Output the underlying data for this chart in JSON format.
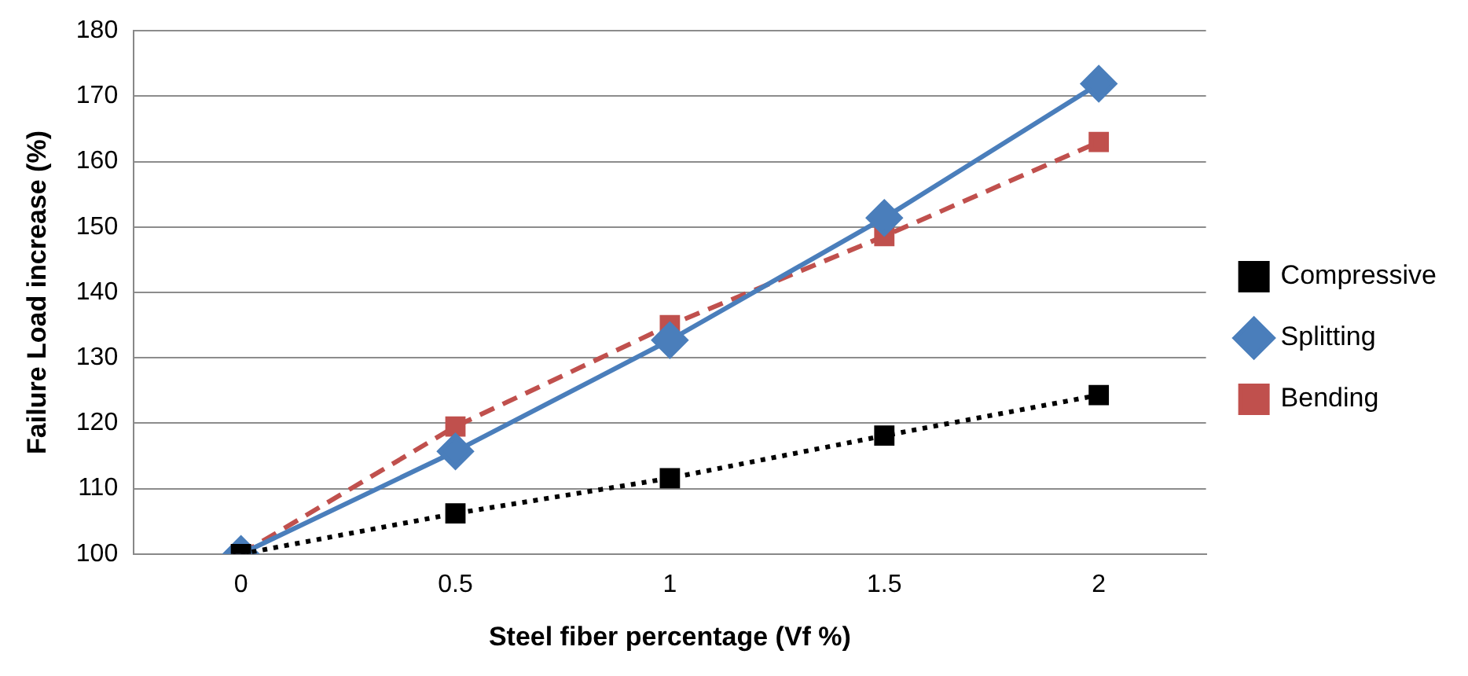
{
  "chart_data": {
    "type": "line",
    "xlabel": "Steel fiber percentage (Vf %)",
    "ylabel": "Failure Load increase (%)",
    "categories": [
      "0",
      "0.5",
      "1",
      "1.5",
      "2"
    ],
    "series": [
      {
        "name": "Compressive",
        "color": "#000000",
        "marker": "square",
        "line_style": "dotted",
        "values": [
          100,
          106.2,
          111.6,
          118.1,
          124.3
        ]
      },
      {
        "name": "Splitting",
        "color": "#4a7ebb",
        "marker": "diamond",
        "line_style": "solid",
        "values": [
          100,
          115.7,
          132.7,
          151.4,
          171.9
        ]
      },
      {
        "name": "Bending",
        "color": "#c0504d",
        "marker": "square",
        "line_style": "dashed",
        "values": [
          100,
          119.5,
          135,
          148.6,
          163
        ]
      }
    ],
    "ylim": [
      100,
      180
    ],
    "yticks": [
      100,
      110,
      120,
      130,
      140,
      150,
      160,
      170,
      180
    ],
    "grid": "y",
    "legend": "right"
  }
}
